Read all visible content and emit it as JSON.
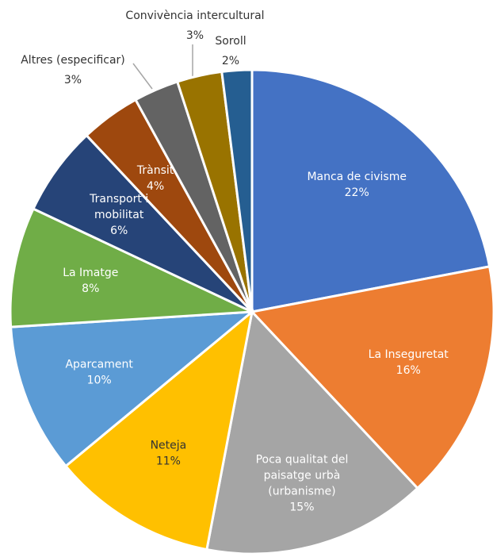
{
  "chart_data": {
    "type": "pie",
    "categories": [
      "Manca de civisme",
      "La Inseguretat",
      "Poca qualitat del\npaisatge urbà\n(urbanisme)",
      "Neteja",
      "Aparcament",
      "La Imatge",
      "Transport i\nmobilitat",
      "Trànsit",
      "Altres (especificar)",
      "Convivència intercultural",
      "Soroll"
    ],
    "values": [
      22,
      16,
      15,
      11,
      10,
      8,
      6,
      4,
      3,
      3,
      2
    ],
    "value_labels": [
      "22%",
      "16%",
      "15%",
      "11%",
      "10%",
      "8%",
      "6%",
      "4%",
      "3%",
      "3%",
      "2%"
    ],
    "colors": [
      "#4472c4",
      "#ed7d31",
      "#a5a5a5",
      "#ffc000",
      "#5b9bd5",
      "#70ad47",
      "#264478",
      "#9e480e",
      "#636363",
      "#997300",
      "#255e91"
    ]
  }
}
